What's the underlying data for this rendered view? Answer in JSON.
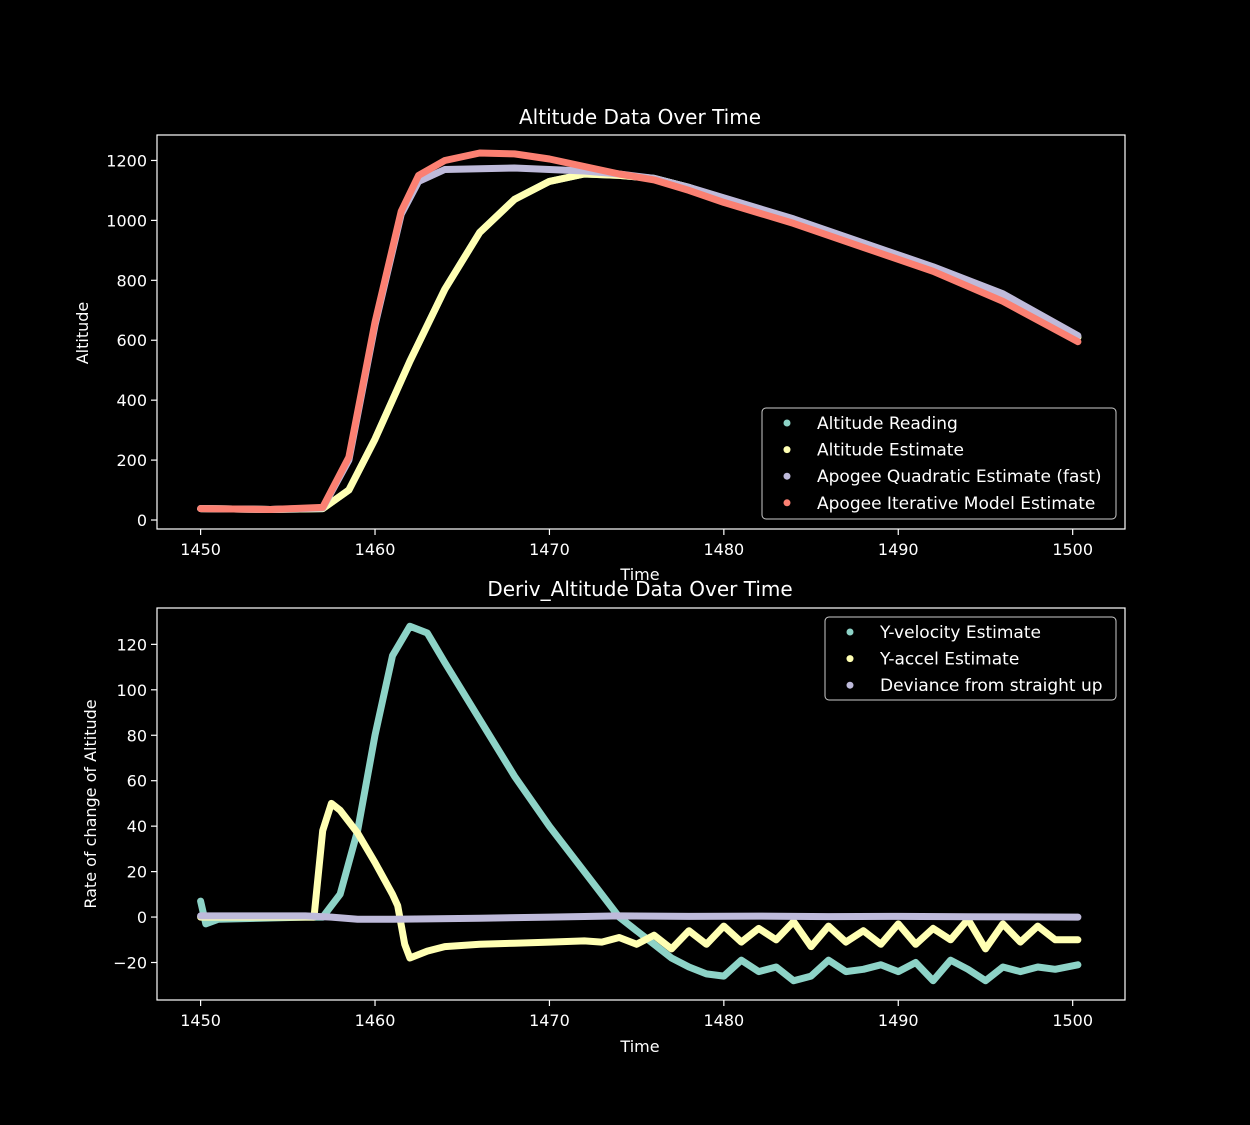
{
  "chart_data": [
    {
      "type": "scatter",
      "title": "Altitude Data Over Time",
      "xlabel": "Time",
      "ylabel": "Altitude",
      "xlim": [
        1447.5,
        1503
      ],
      "ylim": [
        -30,
        1285
      ],
      "xticks": [
        1450,
        1460,
        1470,
        1480,
        1490,
        1500
      ],
      "yticks": [
        0,
        200,
        400,
        600,
        800,
        1000,
        1200
      ],
      "legend_position": "bottom-right",
      "series": [
        {
          "name": "Altitude Reading",
          "color": "#8dd3c7",
          "points": [
            [
              1450,
              38
            ],
            [
              1454,
              35
            ],
            [
              1457,
              38
            ],
            [
              1458.5,
              100
            ],
            [
              1460,
              270
            ],
            [
              1462,
              530
            ],
            [
              1464,
              770
            ],
            [
              1466,
              960
            ],
            [
              1468,
              1070
            ],
            [
              1470,
              1130
            ],
            [
              1472,
              1155
            ],
            [
              1474,
              1150
            ],
            [
              1476,
              1140
            ],
            [
              1478,
              1110
            ],
            [
              1480,
              1070
            ],
            [
              1484,
              1000
            ],
            [
              1488,
              920
            ],
            [
              1492,
              840
            ],
            [
              1496,
              750
            ],
            [
              1500.3,
              610
            ]
          ]
        },
        {
          "name": "Altitude Estimate",
          "color": "#ffffb3",
          "points": [
            [
              1450,
              38
            ],
            [
              1454,
              35
            ],
            [
              1457,
              38
            ],
            [
              1458.5,
              100
            ],
            [
              1460,
              270
            ],
            [
              1462,
              530
            ],
            [
              1464,
              770
            ],
            [
              1466,
              960
            ],
            [
              1468,
              1070
            ],
            [
              1470,
              1130
            ],
            [
              1472,
              1155
            ],
            [
              1474,
              1150
            ],
            [
              1476,
              1140
            ],
            [
              1478,
              1110
            ],
            [
              1480,
              1070
            ],
            [
              1484,
              1000
            ],
            [
              1488,
              920
            ],
            [
              1492,
              840
            ],
            [
              1496,
              750
            ],
            [
              1500.3,
              610
            ]
          ]
        },
        {
          "name": "Apogee Quadratic Estimate (fast)",
          "color": "#bebada",
          "points": [
            [
              1450,
              38
            ],
            [
              1454,
              35
            ],
            [
              1457,
              40
            ],
            [
              1458.5,
              200
            ],
            [
              1460,
              650
            ],
            [
              1461.5,
              1020
            ],
            [
              1462.5,
              1130
            ],
            [
              1464,
              1170
            ],
            [
              1468,
              1175
            ],
            [
              1472,
              1165
            ],
            [
              1474,
              1155
            ],
            [
              1476,
              1140
            ],
            [
              1478,
              1110
            ],
            [
              1480,
              1075
            ],
            [
              1484,
              1005
            ],
            [
              1488,
              925
            ],
            [
              1492,
              845
            ],
            [
              1496,
              755
            ],
            [
              1500.3,
              615
            ]
          ]
        },
        {
          "name": "Apogee Iterative Model Estimate",
          "color": "#fb8072",
          "points": [
            [
              1450,
              38
            ],
            [
              1454,
              35
            ],
            [
              1457,
              42
            ],
            [
              1458.5,
              210
            ],
            [
              1460,
              660
            ],
            [
              1461.5,
              1030
            ],
            [
              1462.5,
              1150
            ],
            [
              1464,
              1200
            ],
            [
              1466,
              1225
            ],
            [
              1468,
              1222
            ],
            [
              1470,
              1205
            ],
            [
              1472,
              1180
            ],
            [
              1474,
              1155
            ],
            [
              1476,
              1135
            ],
            [
              1478,
              1100
            ],
            [
              1480,
              1060
            ],
            [
              1484,
              990
            ],
            [
              1488,
              910
            ],
            [
              1492,
              830
            ],
            [
              1496,
              730
            ],
            [
              1500.3,
              595
            ]
          ]
        }
      ]
    },
    {
      "type": "scatter",
      "title": "Deriv_Altitude Data Over Time",
      "xlabel": "Time",
      "ylabel": "Rate of change of Altitude",
      "xlim": [
        1447.5,
        1503
      ],
      "ylim": [
        -36.5,
        136
      ],
      "xticks": [
        1450,
        1460,
        1470,
        1480,
        1490,
        1500
      ],
      "yticks": [
        -20,
        0,
        20,
        40,
        60,
        80,
        100,
        120
      ],
      "legend_position": "top-right",
      "series": [
        {
          "name": "Y-velocity Estimate",
          "color": "#8dd3c7",
          "points": [
            [
              1450,
              7
            ],
            [
              1450.3,
              -3
            ],
            [
              1451,
              -1
            ],
            [
              1456,
              0
            ],
            [
              1457,
              0
            ],
            [
              1458,
              10
            ],
            [
              1459,
              38
            ],
            [
              1460,
              80
            ],
            [
              1461,
              115
            ],
            [
              1462,
              128
            ],
            [
              1463,
              125
            ],
            [
              1464,
              112
            ],
            [
              1466,
              87
            ],
            [
              1468,
              62
            ],
            [
              1470,
              40
            ],
            [
              1472,
              20
            ],
            [
              1474,
              0
            ],
            [
              1475,
              -6
            ],
            [
              1476,
              -12
            ],
            [
              1477,
              -18
            ],
            [
              1478,
              -22
            ],
            [
              1479,
              -25
            ],
            [
              1480,
              -26
            ],
            [
              1481,
              -19
            ],
            [
              1482,
              -24
            ],
            [
              1483,
              -22
            ],
            [
              1484,
              -28
            ],
            [
              1485,
              -26
            ],
            [
              1486,
              -19
            ],
            [
              1487,
              -24
            ],
            [
              1488,
              -23
            ],
            [
              1489,
              -21
            ],
            [
              1490,
              -24
            ],
            [
              1491,
              -20
            ],
            [
              1492,
              -28
            ],
            [
              1493,
              -19
            ],
            [
              1494,
              -23
            ],
            [
              1495,
              -28
            ],
            [
              1496,
              -22
            ],
            [
              1497,
              -24
            ],
            [
              1498,
              -22
            ],
            [
              1499,
              -23
            ],
            [
              1500.3,
              -21
            ]
          ]
        },
        {
          "name": "Y-accel Estimate",
          "color": "#ffffb3",
          "points": [
            [
              1450,
              0
            ],
            [
              1456.5,
              0
            ],
            [
              1457,
              38
            ],
            [
              1457.5,
              50
            ],
            [
              1458,
              47
            ],
            [
              1459,
              37
            ],
            [
              1460,
              24
            ],
            [
              1461,
              10
            ],
            [
              1461.3,
              5
            ],
            [
              1461.7,
              -12
            ],
            [
              1462,
              -18
            ],
            [
              1463,
              -15
            ],
            [
              1464,
              -13
            ],
            [
              1466,
              -12
            ],
            [
              1468,
              -11.5
            ],
            [
              1470,
              -11
            ],
            [
              1472,
              -10.5
            ],
            [
              1473,
              -11
            ],
            [
              1474,
              -9
            ],
            [
              1475,
              -12
            ],
            [
              1476,
              -8
            ],
            [
              1477,
              -14
            ],
            [
              1478,
              -6
            ],
            [
              1479,
              -12
            ],
            [
              1480,
              -4
            ],
            [
              1481,
              -11
            ],
            [
              1482,
              -5
            ],
            [
              1483,
              -10
            ],
            [
              1484,
              -2
            ],
            [
              1485,
              -13
            ],
            [
              1486,
              -4
            ],
            [
              1487,
              -11
            ],
            [
              1488,
              -6
            ],
            [
              1489,
              -12
            ],
            [
              1490,
              -3
            ],
            [
              1491,
              -12
            ],
            [
              1492,
              -5
            ],
            [
              1493,
              -10
            ],
            [
              1494,
              -1
            ],
            [
              1495,
              -14
            ],
            [
              1496,
              -3
            ],
            [
              1497,
              -11
            ],
            [
              1498,
              -4
            ],
            [
              1499,
              -10
            ],
            [
              1500.3,
              -10
            ]
          ]
        },
        {
          "name": "Deviance from straight up",
          "color": "#bebada",
          "points": [
            [
              1450,
              0.5
            ],
            [
              1456,
              0.5
            ],
            [
              1457.5,
              0
            ],
            [
              1459,
              -1
            ],
            [
              1461,
              -1
            ],
            [
              1463,
              -0.8
            ],
            [
              1466,
              -0.5
            ],
            [
              1470,
              0
            ],
            [
              1474,
              0.5
            ],
            [
              1478,
              0.3
            ],
            [
              1482,
              0.4
            ],
            [
              1486,
              0.2
            ],
            [
              1490,
              0.3
            ],
            [
              1494,
              0.1
            ],
            [
              1500.3,
              0
            ]
          ]
        }
      ]
    }
  ]
}
